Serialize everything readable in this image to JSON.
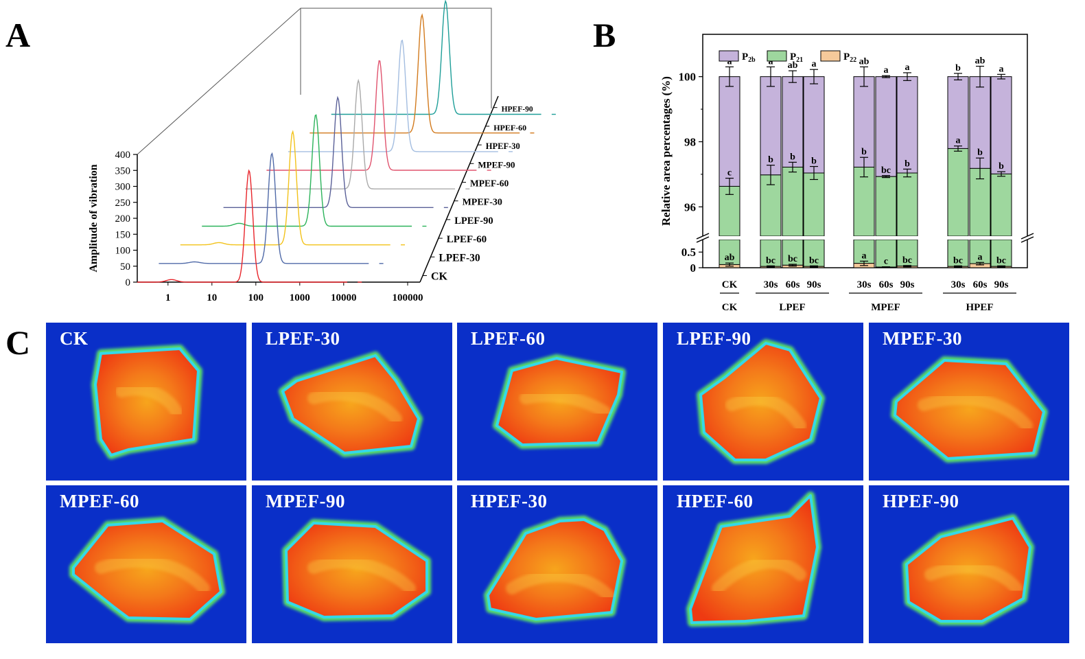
{
  "panels": {
    "a": "A",
    "b": "B",
    "c": "C"
  },
  "chart_data": [
    {
      "type": "line",
      "panel": "A",
      "title": "",
      "ylabel": "Amplitude of vibration",
      "xlabel": "",
      "xscale": "log",
      "xticks": [
        "1",
        "10",
        "100",
        "1000",
        "10000",
        "100000"
      ],
      "yticks": [
        "0",
        "50",
        "100",
        "150",
        "200",
        "250",
        "300",
        "350",
        "400"
      ],
      "ylim": [
        0,
        400
      ],
      "series": [
        {
          "name": "CK",
          "color": "#e8242a",
          "peak_T2": 70,
          "peak_amp": 350,
          "minor_T2": 1.2,
          "minor_amp": 8
        },
        {
          "name": "LPEF-30",
          "color": "#506aa8",
          "peak_T2": 75,
          "peak_amp": 345,
          "minor_T2": 1.3,
          "minor_amp": 5
        },
        {
          "name": "LPEF-60",
          "color": "#f2c21a",
          "peak_T2": 72,
          "peak_amp": 355,
          "minor_T2": 1.5,
          "minor_amp": 7
        },
        {
          "name": "LPEF-90",
          "color": "#2bb35a",
          "peak_T2": 78,
          "peak_amp": 350,
          "minor_T2": 1.4,
          "minor_amp": 9
        },
        {
          "name": "MPEF-30",
          "color": "#5a6098",
          "peak_T2": 80,
          "peak_amp": 345,
          "minor_T2": 1.3,
          "minor_amp": 0
        },
        {
          "name": "MPEF-60",
          "color": "#a9a9a9",
          "peak_T2": 76,
          "peak_amp": 340,
          "minor_T2": 1.3,
          "minor_amp": 0
        },
        {
          "name": "MPEF-90",
          "color": "#e0536e",
          "peak_T2": 74,
          "peak_amp": 345,
          "minor_T2": 1.3,
          "minor_amp": 0
        },
        {
          "name": "HPEF-30",
          "color": "#a3bde0",
          "peak_T2": 78,
          "peak_amp": 350,
          "minor_T2": 1.3,
          "minor_amp": 0
        },
        {
          "name": "HPEF-60",
          "color": "#d27a1d",
          "peak_T2": 72,
          "peak_amp": 370,
          "minor_T2": 1.3,
          "minor_amp": 0
        },
        {
          "name": "HPEF-90",
          "color": "#1e9e98",
          "peak_T2": 80,
          "peak_amp": 355,
          "minor_T2": 1.3,
          "minor_amp": 0
        }
      ]
    },
    {
      "type": "bar",
      "panel": "B",
      "stacked": true,
      "ylabel": "Relative area percentages (%)",
      "yticks_upper": [
        "96",
        "98",
        "100"
      ],
      "yticks_lower": [
        "0",
        "0.5"
      ],
      "ylim_upper": [
        95.1,
        101.3
      ],
      "ylim_lower": [
        0,
        0.9
      ],
      "legend": [
        "P2b",
        "P21",
        "P22"
      ],
      "legend_display": [
        {
          "main": "P",
          "sub": "2b",
          "color": "#c5b3db"
        },
        {
          "main": "P",
          "sub": "21",
          "color": "#9ed79e"
        },
        {
          "main": "P",
          "sub": "22",
          "color": "#f5c99a"
        }
      ],
      "colors": {
        "P2b": "#c5b3db",
        "P21": "#9ed79e",
        "P22": "#f5c99a"
      },
      "categories": [
        "CK",
        "30s",
        "60s",
        "90s",
        "30s",
        "60s",
        "90s",
        "30s",
        "60s",
        "90s"
      ],
      "groups": [
        {
          "label": "CK",
          "count": 1
        },
        {
          "label": "LPEF",
          "count": 3
        },
        {
          "label": "MPEF",
          "count": 3
        },
        {
          "label": "HPEF",
          "count": 3
        }
      ],
      "series": [
        {
          "name": "P22",
          "values": [
            0.1,
            0.04,
            0.08,
            0.04,
            0.14,
            0.02,
            0.05,
            0.04,
            0.13,
            0.04
          ],
          "err": [
            0.05,
            0.02,
            0.03,
            0.02,
            0.07,
            0.01,
            0.02,
            0.02,
            0.04,
            0.02
          ],
          "letters": [
            "ab",
            "bc",
            "bc",
            "bc",
            "a",
            "c",
            "bc",
            "bc",
            "a",
            "bc"
          ]
        },
        {
          "name": "P21",
          "totals": [
            96.63,
            96.98,
            97.22,
            97.04,
            97.22,
            96.93,
            97.04,
            97.79,
            97.18,
            97.01
          ],
          "err": [
            0.25,
            0.3,
            0.15,
            0.2,
            0.3,
            0.03,
            0.12,
            0.08,
            0.32,
            0.07
          ],
          "letters": [
            "c",
            "b",
            "b",
            "b",
            "b",
            "bc",
            "b",
            "a",
            "b",
            "b"
          ]
        },
        {
          "name": "P2b",
          "totals": [
            100,
            100,
            100,
            100,
            100,
            100,
            100,
            100,
            100,
            100
          ],
          "err": [
            0.3,
            0.3,
            0.18,
            0.22,
            0.3,
            0.03,
            0.12,
            0.1,
            0.32,
            0.07
          ],
          "letters": [
            "a",
            "a",
            "ab",
            "a",
            "ab",
            "a",
            "a",
            "b",
            "ab",
            "a"
          ]
        }
      ]
    }
  ],
  "mri": {
    "tiles": [
      {
        "label": "CK"
      },
      {
        "label": "LPEF-30"
      },
      {
        "label": "LPEF-60"
      },
      {
        "label": "LPEF-90"
      },
      {
        "label": "MPEF-30"
      },
      {
        "label": "MPEF-60"
      },
      {
        "label": "MPEF-90"
      },
      {
        "label": "HPEF-30"
      },
      {
        "label": "HPEF-60"
      },
      {
        "label": "HPEF-90"
      }
    ],
    "colors": {
      "background": "#0a2fc8",
      "core": "#ee3a12",
      "mid": "#f7a51c",
      "edge": "#35d8e8"
    }
  }
}
